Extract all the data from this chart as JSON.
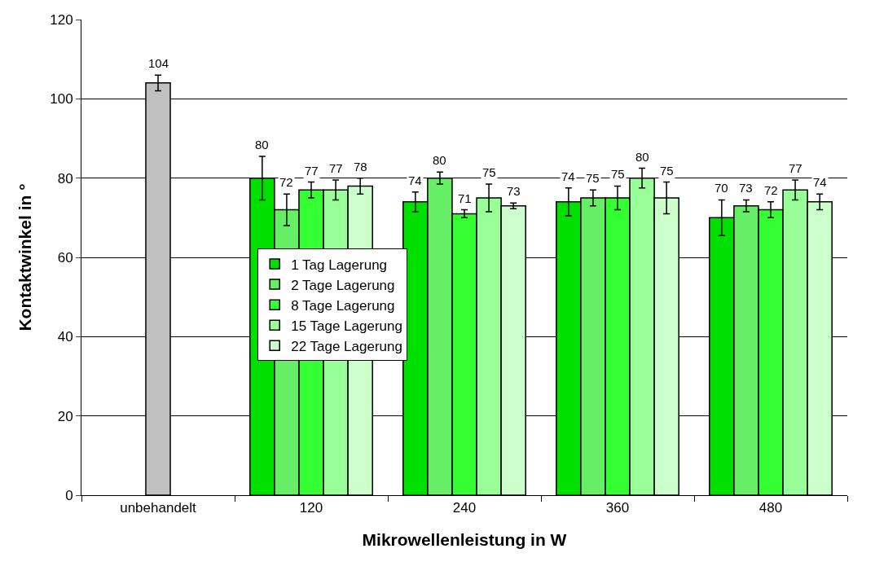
{
  "chart_data": {
    "type": "bar",
    "xlabel": "Mikrowellenleistung in W",
    "ylabel": "Kontaktwinkel in °",
    "categories": [
      "unbehandelt",
      "120",
      "240",
      "360",
      "480"
    ],
    "series": [
      {
        "color": "#c0c0c0",
        "values": [
          104,
          null,
          null,
          null,
          null
        ],
        "errors": [
          2,
          null,
          null,
          null,
          null
        ]
      },
      {
        "name": "1 Tag Lagerung",
        "color": "#00e000",
        "values": [
          null,
          80,
          74,
          74,
          70
        ],
        "errors": [
          null,
          5.5,
          2.5,
          3.5,
          4.5
        ]
      },
      {
        "name": "2 Tage Lagerung",
        "color": "#66ee66",
        "values": [
          null,
          72,
          80,
          75,
          73
        ],
        "errors": [
          null,
          4,
          1.5,
          2,
          1.5
        ]
      },
      {
        "name": "8 Tage Lagerung",
        "color": "#33ff33",
        "values": [
          null,
          77,
          71,
          75,
          72
        ],
        "errors": [
          null,
          2,
          1,
          3,
          2
        ]
      },
      {
        "name": "15 Tage Lagerung",
        "color": "#99ff99",
        "values": [
          null,
          77,
          75,
          80,
          77
        ],
        "errors": [
          null,
          2.5,
          3.5,
          2.5,
          2.5
        ]
      },
      {
        "name": "22 Tage Lagerung",
        "color": "#ccffcc",
        "values": [
          null,
          78,
          73,
          75,
          74
        ],
        "errors": [
          null,
          2,
          0.7,
          4,
          2
        ]
      }
    ],
    "ylim": [
      0,
      120
    ],
    "yticks": [
      0,
      20,
      40,
      60,
      80,
      100,
      120
    ],
    "grid": "y",
    "legend": "bottom",
    "data_labels": true
  }
}
